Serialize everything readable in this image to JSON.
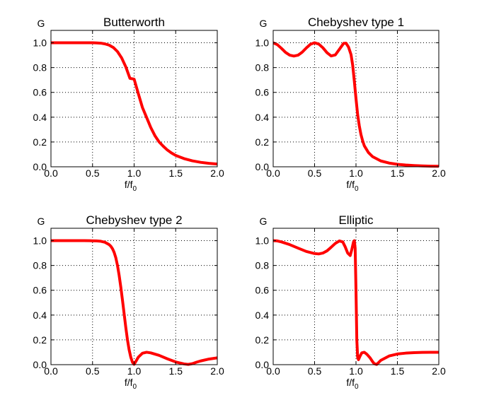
{
  "figure": {
    "background": "#ffffff",
    "curve_color": "#ff0000",
    "frame_color": "#000000",
    "grid_color": "#000000"
  },
  "chart_data": [
    {
      "type": "line",
      "title": "Butterworth",
      "ylabel": "G",
      "xlabel": {
        "main": "f/f",
        "sub": "0"
      },
      "xlim": [
        0,
        2
      ],
      "ylim": [
        0,
        1.1
      ],
      "grid": true,
      "xticks": [
        "0.0",
        "0.5",
        "1.0",
        "1.5",
        "2.0"
      ],
      "yticks": [
        "0.0",
        "0.2",
        "0.4",
        "0.6",
        "0.8",
        "1.0"
      ],
      "series": [
        {
          "x": [
            0,
            0.1,
            0.2,
            0.3,
            0.4,
            0.5,
            0.55,
            0.6,
            0.65,
            0.7,
            0.75,
            0.8,
            0.85,
            0.9,
            0.95,
            1.0,
            1.05,
            1.1,
            1.15,
            1.2,
            1.25,
            1.3,
            1.35,
            1.4,
            1.45,
            1.5,
            1.6,
            1.7,
            1.8,
            1.9,
            2.0
          ],
          "y": [
            1,
            1,
            1,
            1,
            1,
            1,
            0.9985,
            0.997,
            0.991,
            0.981,
            0.962,
            0.929,
            0.878,
            0.806,
            0.713,
            0.707,
            0.591,
            0.478,
            0.398,
            0.317,
            0.251,
            0.201,
            0.166,
            0.135,
            0.111,
            0.092,
            0.066,
            0.048,
            0.036,
            0.028,
            0.022
          ]
        }
      ]
    },
    {
      "type": "line",
      "title": "Chebyshev type 1",
      "ylabel": "G",
      "xlabel": {
        "main": "f/f",
        "sub": "0"
      },
      "xlim": [
        0,
        2
      ],
      "ylim": [
        0,
        1.1
      ],
      "grid": true,
      "xticks": [
        "0.0",
        "0.5",
        "1.0",
        "1.5",
        "2.0"
      ],
      "yticks": [
        "0.0",
        "0.2",
        "0.4",
        "0.6",
        "0.8",
        "1.0"
      ],
      "series": [
        {
          "x": [
            0,
            0.05,
            0.1,
            0.15,
            0.2,
            0.25,
            0.3,
            0.35,
            0.4,
            0.45,
            0.5,
            0.55,
            0.6,
            0.65,
            0.7,
            0.75,
            0.8,
            0.85,
            0.88,
            0.91,
            0.94,
            0.96,
            0.98,
            1.0,
            1.02,
            1.04,
            1.06,
            1.08,
            1.1,
            1.15,
            1.2,
            1.3,
            1.4,
            1.5,
            1.6,
            1.7,
            1.8,
            1.9,
            2.0
          ],
          "y": [
            1,
            0.985,
            0.955,
            0.922,
            0.9,
            0.893,
            0.9,
            0.924,
            0.958,
            0.988,
            1.0,
            0.99,
            0.96,
            0.92,
            0.894,
            0.902,
            0.948,
            0.995,
            0.997,
            0.965,
            0.905,
            0.82,
            0.69,
            0.55,
            0.42,
            0.33,
            0.26,
            0.21,
            0.17,
            0.115,
            0.082,
            0.047,
            0.03,
            0.02,
            0.014,
            0.01,
            0.007,
            0.005,
            0.004
          ]
        }
      ]
    },
    {
      "type": "line",
      "title": "Chebyshev type 2",
      "ylabel": "G",
      "xlabel": {
        "main": "f/f",
        "sub": "0"
      },
      "xlim": [
        0,
        2
      ],
      "ylim": [
        0,
        1.1
      ],
      "grid": true,
      "xticks": [
        "0.0",
        "0.5",
        "1.0",
        "1.5",
        "2.0"
      ],
      "yticks": [
        "0.0",
        "0.2",
        "0.4",
        "0.6",
        "0.8",
        "1.0"
      ],
      "series": [
        {
          "x": [
            0,
            0.1,
            0.2,
            0.3,
            0.4,
            0.5,
            0.55,
            0.6,
            0.65,
            0.7,
            0.72,
            0.74,
            0.76,
            0.78,
            0.8,
            0.82,
            0.84,
            0.86,
            0.88,
            0.9,
            0.92,
            0.94,
            0.96,
            0.98,
            1.0,
            1.02,
            1.05,
            1.1,
            1.15,
            1.2,
            1.3,
            1.4,
            1.5,
            1.6,
            1.65,
            1.7,
            1.75,
            1.8,
            1.9,
            2.0
          ],
          "y": [
            1,
            1,
            1,
            1,
            1,
            0.999,
            0.998,
            0.995,
            0.987,
            0.968,
            0.955,
            0.935,
            0.905,
            0.862,
            0.8,
            0.72,
            0.625,
            0.52,
            0.41,
            0.3,
            0.2,
            0.12,
            0.06,
            0.02,
            0.003,
            0.025,
            0.06,
            0.092,
            0.1,
            0.095,
            0.075,
            0.047,
            0.022,
            0.006,
            0.002,
            0.008,
            0.02,
            0.03,
            0.045,
            0.055
          ]
        }
      ]
    },
    {
      "type": "line",
      "title": "Elliptic",
      "ylabel": "G",
      "xlabel": {
        "main": "f/f",
        "sub": "0"
      },
      "xlim": [
        0,
        2
      ],
      "ylim": [
        0,
        1.1
      ],
      "grid": true,
      "xticks": [
        "0.0",
        "0.5",
        "1.0",
        "1.5",
        "2.0"
      ],
      "yticks": [
        "0.0",
        "0.2",
        "0.4",
        "0.6",
        "0.8",
        "1.0"
      ],
      "series": [
        {
          "x": [
            0,
            0.05,
            0.1,
            0.2,
            0.3,
            0.4,
            0.5,
            0.55,
            0.6,
            0.65,
            0.7,
            0.75,
            0.8,
            0.84,
            0.87,
            0.9,
            0.93,
            0.95,
            0.97,
            0.98,
            0.99,
            1.0,
            1.01,
            1.02,
            1.03,
            1.05,
            1.07,
            1.1,
            1.13,
            1.17,
            1.2,
            1.22,
            1.25,
            1.3,
            1.4,
            1.5,
            1.6,
            1.7,
            1.8,
            1.9,
            2.0
          ],
          "y": [
            1,
            0.998,
            0.99,
            0.968,
            0.94,
            0.913,
            0.896,
            0.893,
            0.9,
            0.918,
            0.947,
            0.978,
            0.998,
            0.99,
            0.95,
            0.9,
            0.88,
            0.93,
            0.99,
            1.0,
            0.94,
            0.6,
            0.2,
            0.06,
            0.04,
            0.07,
            0.095,
            0.1,
            0.085,
            0.055,
            0.025,
            0.008,
            0.002,
            0.035,
            0.07,
            0.086,
            0.093,
            0.097,
            0.099,
            0.1,
            0.1
          ]
        }
      ]
    }
  ]
}
